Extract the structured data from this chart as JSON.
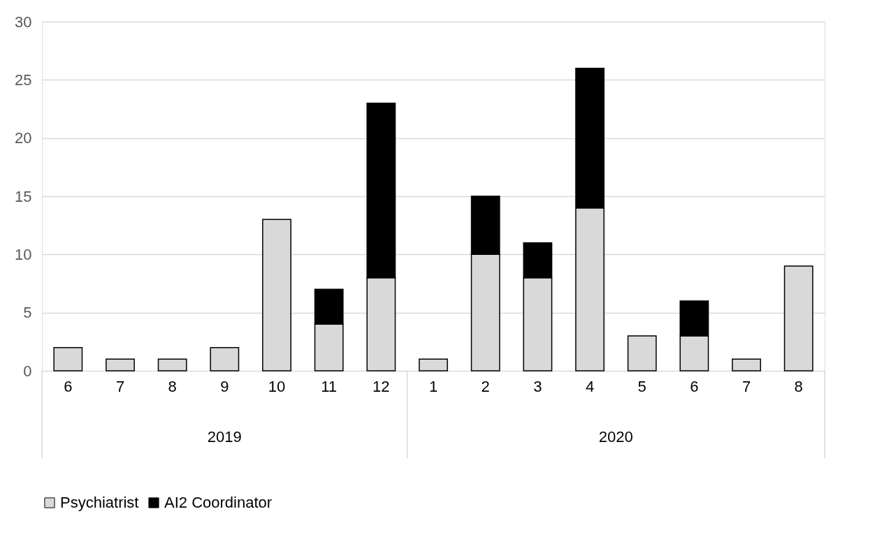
{
  "chart_data": {
    "type": "bar",
    "stacked": true,
    "categories": [
      "6",
      "7",
      "8",
      "9",
      "10",
      "11",
      "12",
      "1",
      "2",
      "3",
      "4",
      "5",
      "6",
      "7",
      "8"
    ],
    "series": [
      {
        "name": "Psychiatrist",
        "color": "#d9d9d9",
        "values": [
          2,
          1,
          1,
          2,
          13,
          4,
          8,
          1,
          10,
          8,
          14,
          3,
          3,
          1,
          9
        ]
      },
      {
        "name": "AI2 Coordinator",
        "color": "#000000",
        "values": [
          null,
          null,
          null,
          null,
          null,
          3,
          15,
          null,
          5,
          3,
          12,
          null,
          3,
          null,
          null
        ]
      }
    ],
    "annotations": [
      "2019",
      "2020"
    ],
    "ylim": [
      0,
      30
    ],
    "yticks": [
      0,
      5,
      10,
      15,
      20,
      25,
      30
    ],
    "grid": "y",
    "legend": "bottom"
  }
}
